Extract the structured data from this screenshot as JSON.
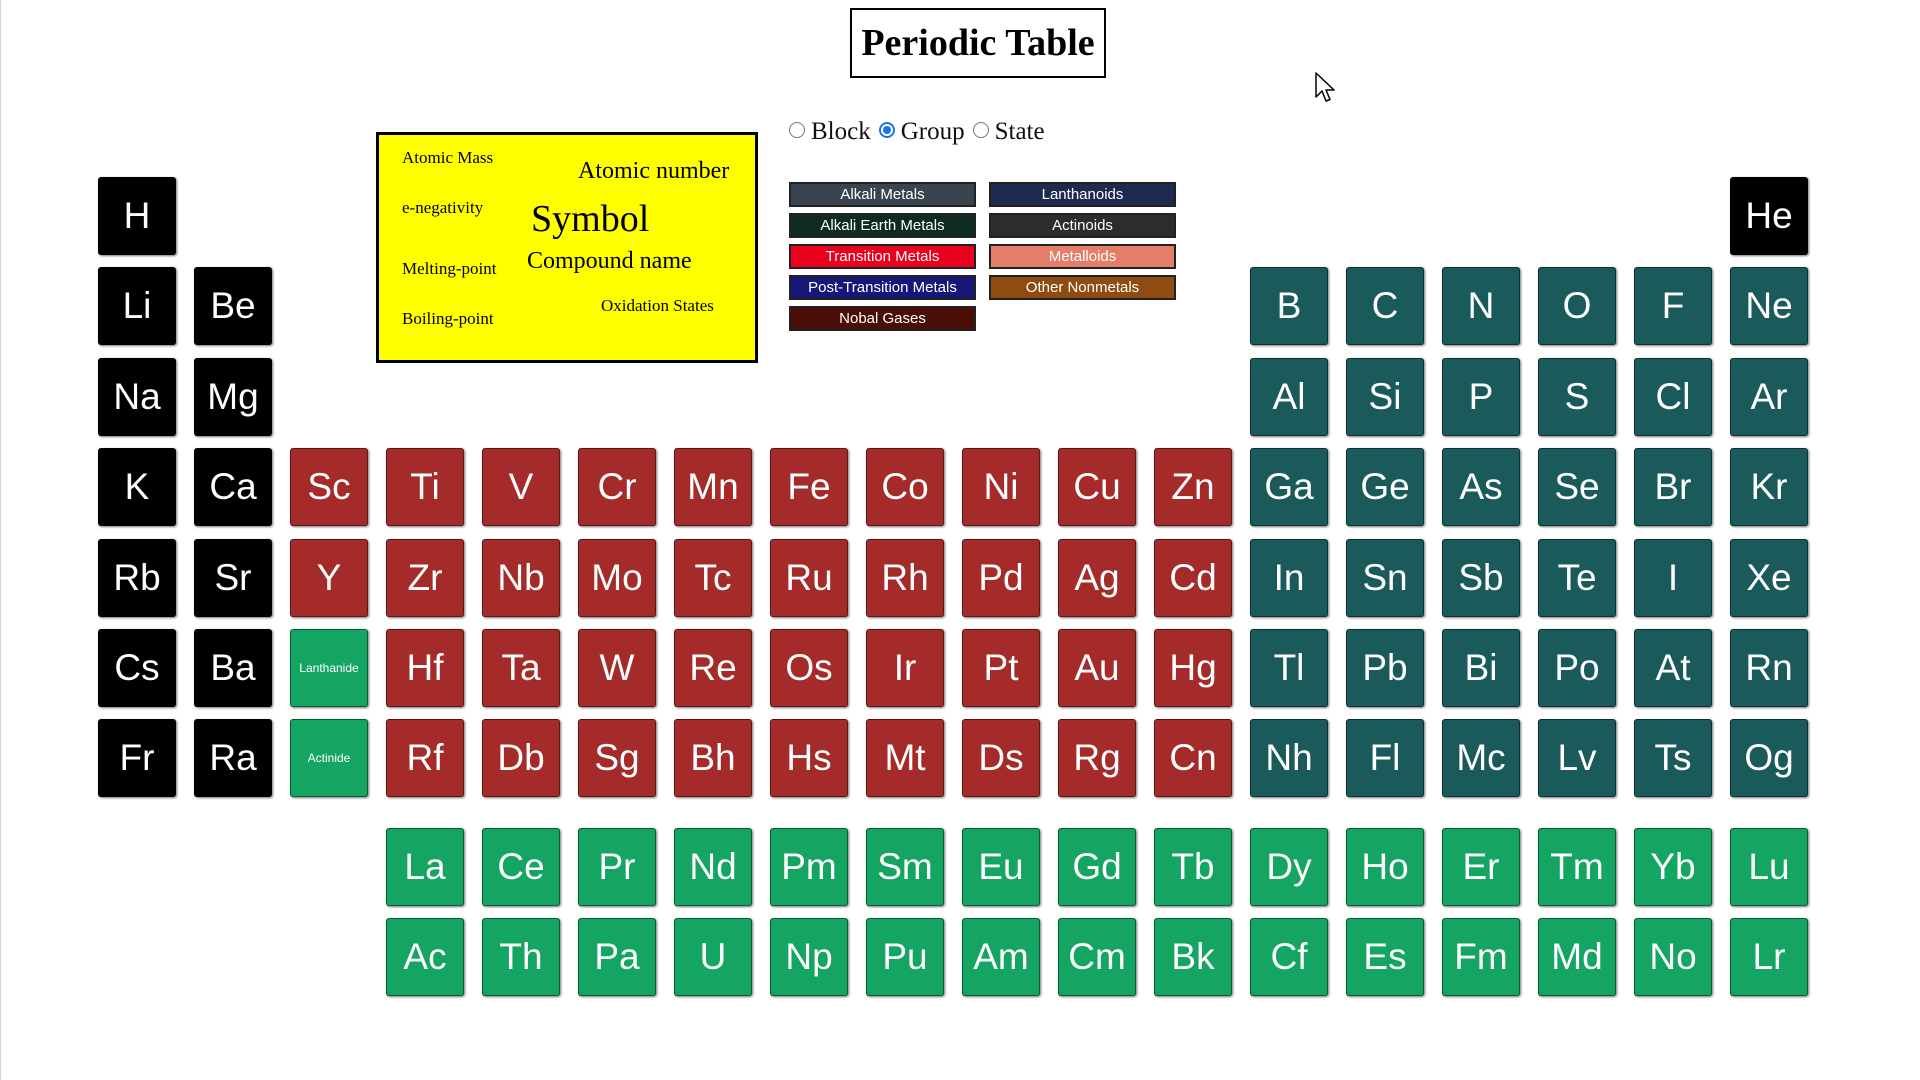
{
  "title": "Periodic Table",
  "modes": [
    {
      "label": "Block",
      "checked": false
    },
    {
      "label": "Group",
      "checked": true
    },
    {
      "label": "State",
      "checked": false
    }
  ],
  "key": {
    "atomic_mass": "Atomic Mass",
    "atomic_number": "Atomic number",
    "e_negativity": "e-negativity",
    "symbol": "Symbol",
    "compound_name": "Compound name",
    "melting_point": "Melting-point",
    "boiling_point": "Boiling-point",
    "oxidation_states": "Oxidation States"
  },
  "legend": [
    {
      "label": "Alkali Metals",
      "color": "#384550"
    },
    {
      "label": "Lanthanoids",
      "color": "#1f2a50"
    },
    {
      "label": "Alkali Earth Metals",
      "color": "#0e2b1f"
    },
    {
      "label": "Actinoids",
      "color": "#2c2c2c"
    },
    {
      "label": "Transition Metals",
      "color": "#e8001c"
    },
    {
      "label": "Metalloids",
      "color": "#e47e68"
    },
    {
      "label": "Post-Transition Metals",
      "color": "#17177a"
    },
    {
      "label": "Other Nonmetals",
      "color": "#8e4b12"
    },
    {
      "label": "Nobal Gases",
      "color": "#4b0e07"
    }
  ],
  "colors": {
    "black": "#000000",
    "teal": "#1b5a5a",
    "red": "#a52a2a",
    "green": "#13a561"
  },
  "rows": [
    [
      [
        "H",
        "black"
      ],
      null,
      null,
      null,
      null,
      null,
      null,
      null,
      null,
      null,
      null,
      null,
      null,
      null,
      null,
      null,
      null,
      [
        "He",
        "black"
      ]
    ],
    [
      [
        "Li",
        "black"
      ],
      [
        "Be",
        "black"
      ],
      null,
      null,
      null,
      null,
      null,
      null,
      null,
      null,
      null,
      null,
      [
        "B",
        "teal"
      ],
      [
        "C",
        "teal"
      ],
      [
        "N",
        "teal"
      ],
      [
        "O",
        "teal"
      ],
      [
        "F",
        "teal"
      ],
      [
        "Ne",
        "teal"
      ]
    ],
    [
      [
        "Na",
        "black"
      ],
      [
        "Mg",
        "black"
      ],
      null,
      null,
      null,
      null,
      null,
      null,
      null,
      null,
      null,
      null,
      [
        "Al",
        "teal"
      ],
      [
        "Si",
        "teal"
      ],
      [
        "P",
        "teal"
      ],
      [
        "S",
        "teal"
      ],
      [
        "Cl",
        "teal"
      ],
      [
        "Ar",
        "teal"
      ]
    ],
    [
      [
        "K",
        "black"
      ],
      [
        "Ca",
        "black"
      ],
      [
        "Sc",
        "red"
      ],
      [
        "Ti",
        "red"
      ],
      [
        "V",
        "red"
      ],
      [
        "Cr",
        "red"
      ],
      [
        "Mn",
        "red"
      ],
      [
        "Fe",
        "red"
      ],
      [
        "Co",
        "red"
      ],
      [
        "Ni",
        "red"
      ],
      [
        "Cu",
        "red"
      ],
      [
        "Zn",
        "red"
      ],
      [
        "Ga",
        "teal"
      ],
      [
        "Ge",
        "teal"
      ],
      [
        "As",
        "teal"
      ],
      [
        "Se",
        "teal"
      ],
      [
        "Br",
        "teal"
      ],
      [
        "Kr",
        "teal"
      ]
    ],
    [
      [
        "Rb",
        "black"
      ],
      [
        "Sr",
        "black"
      ],
      [
        "Y",
        "red"
      ],
      [
        "Zr",
        "red"
      ],
      [
        "Nb",
        "red"
      ],
      [
        "Mo",
        "red"
      ],
      [
        "Tc",
        "red"
      ],
      [
        "Ru",
        "red"
      ],
      [
        "Rh",
        "red"
      ],
      [
        "Pd",
        "red"
      ],
      [
        "Ag",
        "red"
      ],
      [
        "Cd",
        "red"
      ],
      [
        "In",
        "teal"
      ],
      [
        "Sn",
        "teal"
      ],
      [
        "Sb",
        "teal"
      ],
      [
        "Te",
        "teal"
      ],
      [
        "I",
        "teal"
      ],
      [
        "Xe",
        "teal"
      ]
    ],
    [
      [
        "Cs",
        "black"
      ],
      [
        "Ba",
        "black"
      ],
      [
        "Lanthanide",
        "green"
      ],
      [
        "Hf",
        "red"
      ],
      [
        "Ta",
        "red"
      ],
      [
        "W",
        "red"
      ],
      [
        "Re",
        "red"
      ],
      [
        "Os",
        "red"
      ],
      [
        "Ir",
        "red"
      ],
      [
        "Pt",
        "red"
      ],
      [
        "Au",
        "red"
      ],
      [
        "Hg",
        "red"
      ],
      [
        "Tl",
        "teal"
      ],
      [
        "Pb",
        "teal"
      ],
      [
        "Bi",
        "teal"
      ],
      [
        "Po",
        "teal"
      ],
      [
        "At",
        "teal"
      ],
      [
        "Rn",
        "teal"
      ]
    ],
    [
      [
        "Fr",
        "black"
      ],
      [
        "Ra",
        "black"
      ],
      [
        "Actinide",
        "green"
      ],
      [
        "Rf",
        "red"
      ],
      [
        "Db",
        "red"
      ],
      [
        "Sg",
        "red"
      ],
      [
        "Bh",
        "red"
      ],
      [
        "Hs",
        "red"
      ],
      [
        "Mt",
        "red"
      ],
      [
        "Ds",
        "red"
      ],
      [
        "Rg",
        "red"
      ],
      [
        "Cn",
        "red"
      ],
      [
        "Nh",
        "teal"
      ],
      [
        "Fl",
        "teal"
      ],
      [
        "Mc",
        "teal"
      ],
      [
        "Lv",
        "teal"
      ],
      [
        "Ts",
        "teal"
      ],
      [
        "Og",
        "teal"
      ]
    ],
    [
      null,
      null,
      null,
      [
        "La",
        "green"
      ],
      [
        "Ce",
        "green"
      ],
      [
        "Pr",
        "green"
      ],
      [
        "Nd",
        "green"
      ],
      [
        "Pm",
        "green"
      ],
      [
        "Sm",
        "green"
      ],
      [
        "Eu",
        "green"
      ],
      [
        "Gd",
        "green"
      ],
      [
        "Tb",
        "green"
      ],
      [
        "Dy",
        "green"
      ],
      [
        "Ho",
        "green"
      ],
      [
        "Er",
        "green"
      ],
      [
        "Tm",
        "green"
      ],
      [
        "Yb",
        "green"
      ],
      [
        "Lu",
        "green"
      ]
    ],
    [
      null,
      null,
      null,
      [
        "Ac",
        "green"
      ],
      [
        "Th",
        "green"
      ],
      [
        "Pa",
        "green"
      ],
      [
        "U",
        "green"
      ],
      [
        "Np",
        "green"
      ],
      [
        "Pu",
        "green"
      ],
      [
        "Am",
        "green"
      ],
      [
        "Cm",
        "green"
      ],
      [
        "Bk",
        "green"
      ],
      [
        "Cf",
        "green"
      ],
      [
        "Es",
        "green"
      ],
      [
        "Fm",
        "green"
      ],
      [
        "Md",
        "green"
      ],
      [
        "No",
        "green"
      ],
      [
        "Lr",
        "green"
      ]
    ]
  ]
}
